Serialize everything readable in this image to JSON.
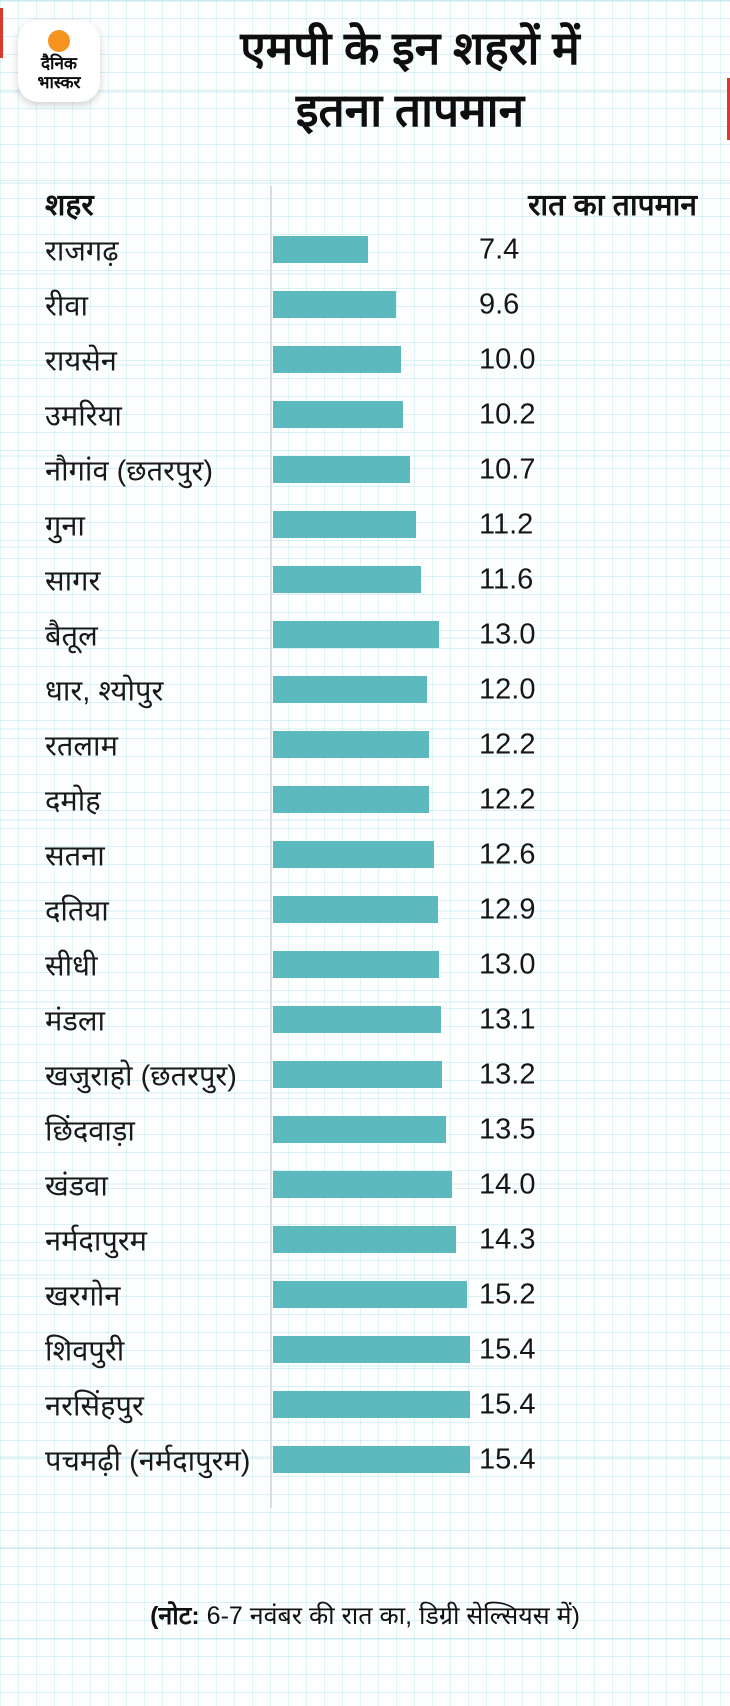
{
  "brand": {
    "logo_line1": "दैनिक",
    "logo_line2": "भास्कर",
    "dot_color": "#f6921e"
  },
  "header": {
    "title_line1": "एमपी के इन शहरों में",
    "title_line2": "इतना तापमान"
  },
  "columns": {
    "city": "शहर",
    "temperature": "रात का तापमान"
  },
  "footer": {
    "note_label": "(नोट:",
    "note_text": " 6-7 नवंबर की रात का, डिग्री सेल्सियस में)"
  },
  "colors": {
    "bar": "#5cb9be",
    "accent_red": "#d93a2b",
    "logo_dot": "#f6921e",
    "text": "#141414"
  },
  "chart_data": {
    "type": "bar",
    "orientation": "horizontal",
    "title": "एमपी के इन शहरों में इतना तापमान",
    "category_label": "शहर",
    "value_label": "रात का तापमान",
    "unit": "डिग्री सेल्सियस",
    "note": "(नोट: 6-7 नवंबर की रात का, डिग्री सेल्सियस में)",
    "xlim": [
      0,
      16
    ],
    "grid": true,
    "categories": [
      "राजगढ़",
      "रीवा",
      "रायसेन",
      "उमरिया",
      "नौगांव (छतरपुर)",
      "गुना",
      "सागर",
      "बैतूल",
      "धार, श्योपुर",
      "रतलाम",
      "दमोह",
      "सतना",
      "दतिया",
      "सीधी",
      "मंडला",
      "खजुराहो (छतरपुर)",
      "छिंदवाड़ा",
      "खंडवा",
      "नर्मदापुरम",
      "खरगोन",
      "शिवपुरी",
      "नरसिंहपुर",
      "पचमढ़ी (नर्मदापुरम)"
    ],
    "values": [
      7.4,
      9.6,
      10.0,
      10.2,
      10.7,
      11.2,
      11.6,
      13.0,
      12.0,
      12.2,
      12.2,
      12.6,
      12.9,
      13.0,
      13.1,
      13.2,
      13.5,
      14.0,
      14.3,
      15.2,
      15.4,
      15.4,
      15.4
    ],
    "value_labels": [
      "7.4",
      "9.6",
      "10.0",
      "10.2",
      "10.7",
      "11.2",
      "11.6",
      "13.0",
      "12.0",
      "12.2",
      "12.2",
      "12.6",
      "12.9",
      "13.0",
      "13.1",
      "13.2",
      "13.5",
      "14.0",
      "14.3",
      "15.2",
      "15.4",
      "15.4",
      "15.4"
    ]
  }
}
